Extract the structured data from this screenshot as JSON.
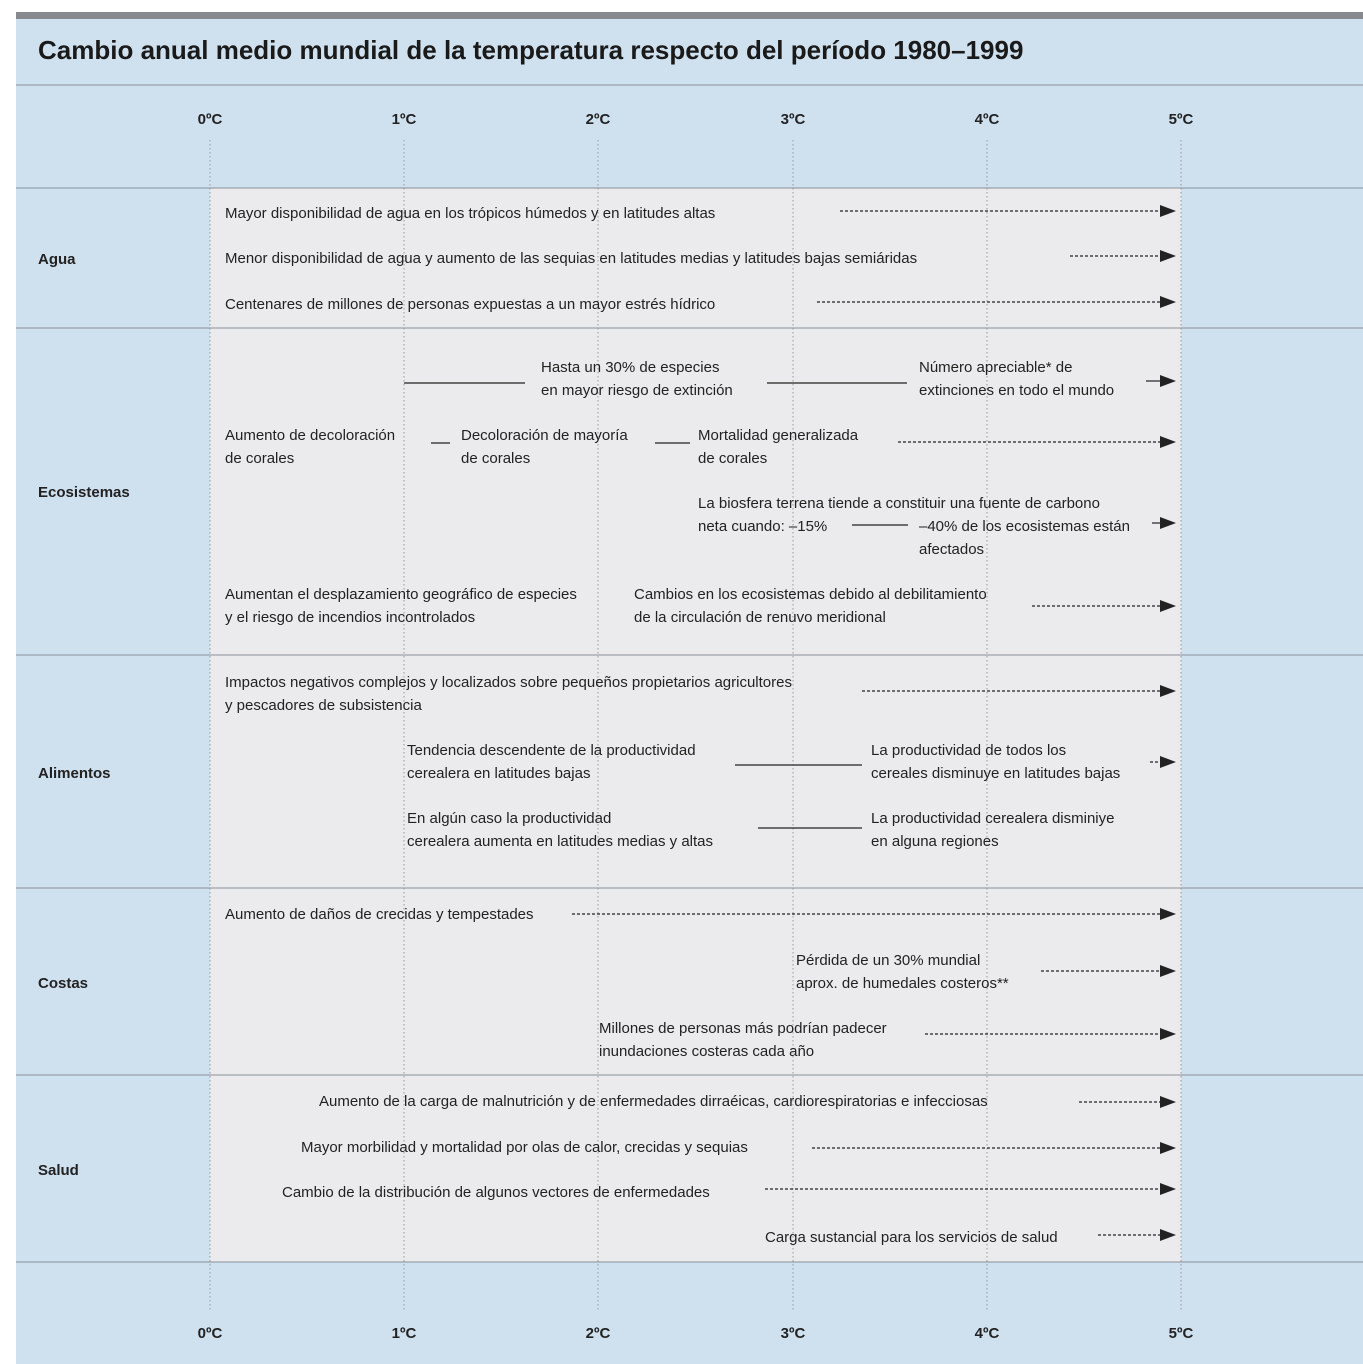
{
  "title": "Cambio anual medio mundial de la temperatura respecto del período 1980–1999",
  "axis": {
    "labels": [
      "0ºC",
      "1ºC",
      "2ºC",
      "3ºC",
      "4ºC",
      "5ºC"
    ]
  },
  "sections": [
    {
      "name": "Agua",
      "items": [
        [
          "Mayor disponibilidad de agua en los trópicos húmedos y en latitudes altas"
        ],
        [
          "Menor disponibilidad de agua y aumento de las sequias en latitudes medias y latitudes bajas semiáridas"
        ],
        [
          "Centenares de millones de personas expuestas a un mayor estrés hídrico"
        ]
      ]
    },
    {
      "name": "Ecosistemas",
      "items": [
        [
          "Hasta un 30% de especies",
          "en mayor riesgo de extinción"
        ],
        [
          "Número apreciable* de",
          "extinciones en todo el mundo"
        ],
        [
          "Aumento de decoloración",
          "de corales"
        ],
        [
          "Decoloración de mayoría",
          "de corales"
        ],
        [
          "Mortalidad generalizada",
          "de corales"
        ],
        [
          "La biosfera terrena tiende a constituir una fuente de carbono",
          "neta cuando: –15%"
        ],
        [
          "–40% de los ecosistemas están",
          "afectados"
        ],
        [
          "Aumentan el desplazamiento geográfico de especies",
          "y el riesgo de incendios incontrolados"
        ],
        [
          "Cambios en los ecosistemas debido al debilitamiento",
          "de la circulación de renuvo meridional"
        ]
      ]
    },
    {
      "name": "Alimentos",
      "items": [
        [
          "Impactos negativos complejos y localizados sobre pequeños propietarios agricultores",
          "y pescadores de subsistencia"
        ],
        [
          "Tendencia descendente de la productividad",
          "cerealera en latitudes bajas"
        ],
        [
          "La productividad de todos los",
          "cereales disminuye en latitudes bajas"
        ],
        [
          "En algún caso la productividad",
          "cerealera aumenta en latitudes medias y altas"
        ],
        [
          "La productividad cerealera disminiye",
          "en alguna regiones"
        ]
      ]
    },
    {
      "name": "Costas",
      "items": [
        [
          "Aumento de daños de crecidas y tempestades"
        ],
        [
          "Pérdida de un 30% mundial",
          "aprox. de humedales costeros**"
        ],
        [
          "Millones de personas más podrían padecer",
          "inundaciones costeras cada año"
        ]
      ]
    },
    {
      "name": "Salud",
      "items": [
        [
          "Aumento de la carga de malnutrición y de enfermedades dirraéicas, cardiorespiratorias e infecciosas"
        ],
        [
          "Mayor morbilidad y mortalidad por olas de calor, crecidas y sequias"
        ],
        [
          "Cambio de la distribución de algunos vectores de enfermedades"
        ],
        [
          "Carga sustancial para los servicios de salud"
        ]
      ]
    }
  ]
}
